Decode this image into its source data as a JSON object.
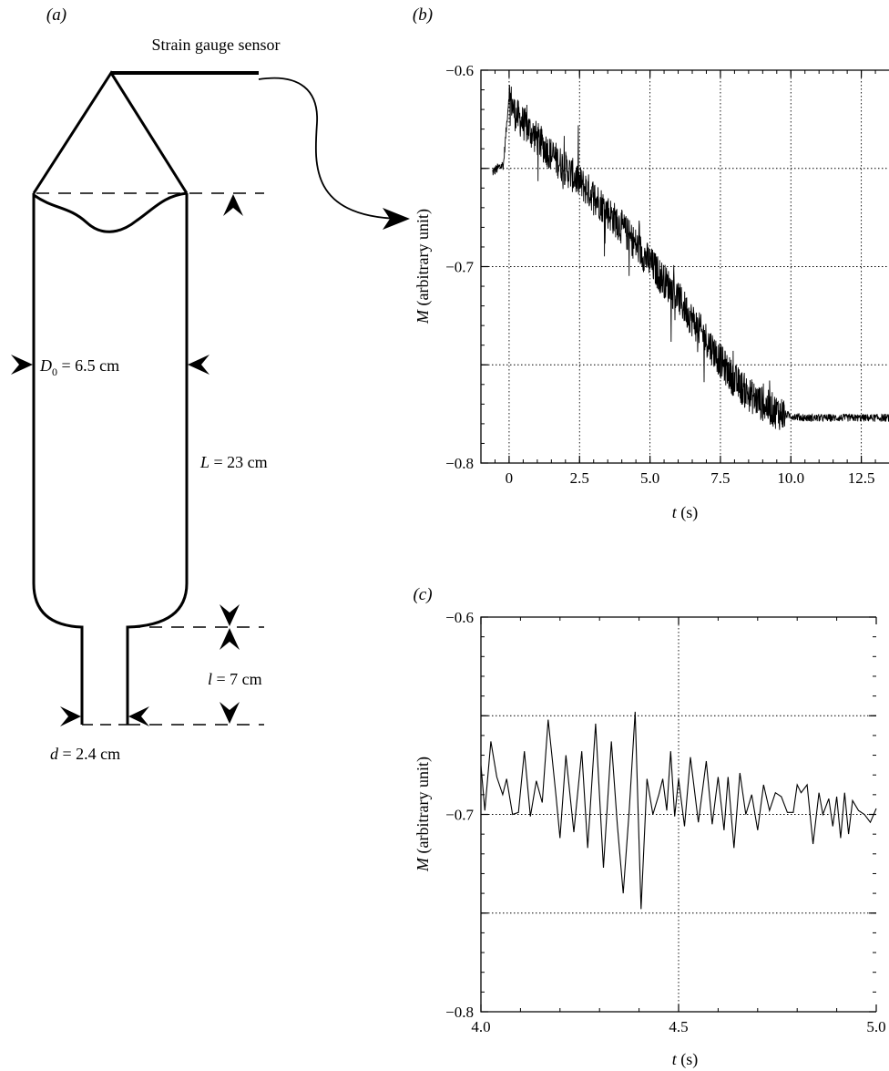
{
  "panel_a": {
    "panel_label": "(a)",
    "sensor_label": "Strain gauge sensor",
    "D0": {
      "symbol": "D",
      "subscript": "0",
      "value": " = 6.5 cm"
    },
    "L": {
      "symbol": "L",
      "value": " = 23 cm"
    },
    "l": {
      "symbol": "l",
      "value": " = 7 cm"
    },
    "d": {
      "symbol": "d",
      "value": " = 2.4 cm"
    }
  },
  "chart_data": [
    {
      "panel_label": "(b)",
      "type": "line",
      "xlabel": {
        "symbol": "t",
        "unit": " (s)"
      },
      "ylabel": {
        "symbol": "M",
        "unit": " (arbitrary unit)"
      },
      "xlim": [
        -1.0,
        14.0
      ],
      "ylim": [
        -0.8,
        -0.6
      ],
      "xticks": [
        0,
        2.5,
        5.0,
        7.5,
        10.0,
        12.5
      ],
      "xtick_labels": [
        "0",
        "2.5",
        "5.0",
        "7.5",
        "10.0",
        "12.5"
      ],
      "yticks": [
        -0.8,
        -0.75,
        -0.7,
        -0.65,
        -0.6
      ],
      "ytick_labels": [
        "−0.8",
        "",
        "−0.7",
        "",
        "−0.6"
      ],
      "grid": true,
      "noise_amplitude": 0.009,
      "series": [
        {
          "x": [
            -0.6,
            -0.2,
            0.0,
            0.2,
            0.5,
            1.0,
            1.5,
            2.0,
            2.5,
            3.0,
            3.5,
            4.0,
            4.5,
            5.0,
            5.5,
            6.0,
            6.5,
            7.0,
            7.5,
            8.0,
            8.5,
            9.0,
            9.5,
            10.0,
            10.5,
            11.0,
            11.5,
            12.0,
            12.5,
            13.0,
            13.5,
            14.0
          ],
          "y": [
            -0.652,
            -0.648,
            -0.612,
            -0.622,
            -0.627,
            -0.635,
            -0.643,
            -0.65,
            -0.657,
            -0.664,
            -0.672,
            -0.68,
            -0.689,
            -0.698,
            -0.707,
            -0.716,
            -0.727,
            -0.737,
            -0.748,
            -0.758,
            -0.765,
            -0.77,
            -0.774,
            -0.776,
            -0.777,
            -0.777,
            -0.777,
            -0.777,
            -0.777,
            -0.777,
            -0.777,
            -0.777
          ]
        }
      ]
    },
    {
      "panel_label": "(c)",
      "type": "line",
      "xlabel": {
        "symbol": "t",
        "unit": " (s)"
      },
      "ylabel": {
        "symbol": "M",
        "unit": " (arbitrary unit)"
      },
      "xlim": [
        4.0,
        5.0
      ],
      "ylim": [
        -0.8,
        -0.6
      ],
      "xticks": [
        4.0,
        4.5,
        5.0
      ],
      "xtick_labels": [
        "4.0",
        "4.5",
        "5.0"
      ],
      "yticks": [
        -0.8,
        -0.75,
        -0.7,
        -0.65,
        -0.6
      ],
      "ytick_labels": [
        "−0.8",
        "",
        "−0.7",
        "",
        "−0.6"
      ],
      "grid": true,
      "series": [
        {
          "x": [
            4.0,
            4.01,
            4.025,
            4.04,
            4.055,
            4.065,
            4.08,
            4.095,
            4.11,
            4.125,
            4.14,
            4.155,
            4.17,
            4.18,
            4.19,
            4.2,
            4.215,
            4.235,
            4.255,
            4.27,
            4.29,
            4.31,
            4.33,
            4.345,
            4.36,
            4.375,
            4.39,
            4.405,
            4.42,
            4.435,
            4.45,
            4.46,
            4.47,
            4.48,
            4.49,
            4.5,
            4.515,
            4.53,
            4.55,
            4.57,
            4.585,
            4.6,
            4.615,
            4.625,
            4.64,
            4.655,
            4.67,
            4.685,
            4.7,
            4.715,
            4.73,
            4.745,
            4.76,
            4.775,
            4.79,
            4.8,
            4.81,
            4.825,
            4.84,
            4.855,
            4.865,
            4.88,
            4.89,
            4.9,
            4.91,
            4.92,
            4.93,
            4.94,
            4.955,
            4.97,
            4.985,
            5.0
          ],
          "y": [
            -0.675,
            -0.698,
            -0.663,
            -0.681,
            -0.69,
            -0.682,
            -0.7,
            -0.699,
            -0.668,
            -0.701,
            -0.683,
            -0.694,
            -0.652,
            -0.671,
            -0.691,
            -0.712,
            -0.67,
            -0.709,
            -0.668,
            -0.717,
            -0.654,
            -0.727,
            -0.663,
            -0.705,
            -0.74,
            -0.698,
            -0.648,
            -0.748,
            -0.682,
            -0.7,
            -0.69,
            -0.682,
            -0.698,
            -0.668,
            -0.701,
            -0.682,
            -0.706,
            -0.671,
            -0.704,
            -0.673,
            -0.705,
            -0.681,
            -0.708,
            -0.681,
            -0.717,
            -0.679,
            -0.7,
            -0.69,
            -0.708,
            -0.685,
            -0.698,
            -0.689,
            -0.691,
            -0.699,
            -0.699,
            -0.685,
            -0.689,
            -0.685,
            -0.715,
            -0.689,
            -0.7,
            -0.692,
            -0.706,
            -0.691,
            -0.712,
            -0.689,
            -0.71,
            -0.693,
            -0.698,
            -0.7,
            -0.704,
            -0.697
          ]
        }
      ]
    }
  ]
}
